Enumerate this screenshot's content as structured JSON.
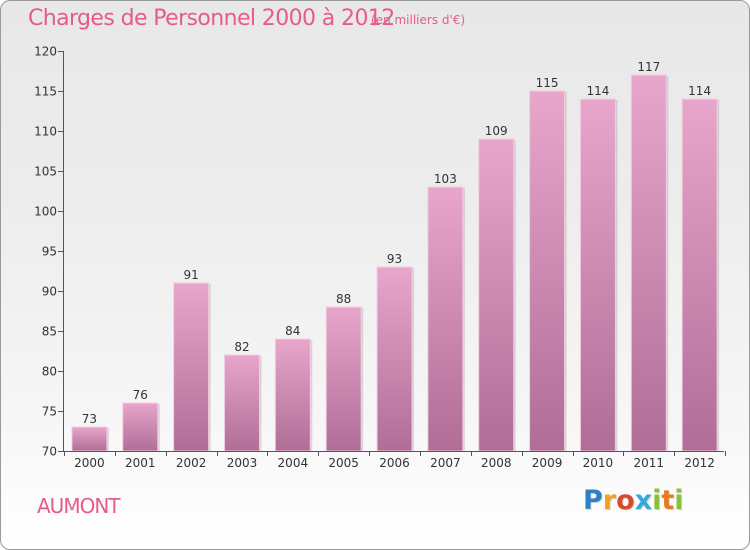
{
  "chart_data": {
    "type": "bar",
    "title": "Charges de Personnel 2000 à 2012",
    "subtitle": "(en milliers d'€)",
    "categories": [
      "2000",
      "2001",
      "2002",
      "2003",
      "2004",
      "2005",
      "2006",
      "2007",
      "2008",
      "2009",
      "2010",
      "2011",
      "2012"
    ],
    "values": [
      73,
      76,
      91,
      82,
      84,
      88,
      93,
      103,
      109,
      115,
      114,
      117,
      114
    ],
    "ylim": [
      70,
      120
    ],
    "yticks": [
      70,
      75,
      80,
      85,
      90,
      95,
      100,
      105,
      110,
      115,
      120
    ],
    "xlabel": "",
    "ylabel": "",
    "grid": false,
    "bar_color_top": "#e8a6cc",
    "bar_color_bottom": "#b06d96",
    "data_labels": true
  },
  "place": "AUMONT",
  "brand": {
    "letters": [
      "P",
      "r",
      "o",
      "x",
      "i",
      "t",
      "i"
    ],
    "colors": [
      "#2e7fc3",
      "#f0a31d",
      "#d94a2a",
      "#37a8de",
      "#8cbf3f",
      "#e57c22",
      "#8cbf3f"
    ]
  },
  "colors": {
    "title": "#e75a8c",
    "axis": "#555555",
    "text": "#333333"
  }
}
